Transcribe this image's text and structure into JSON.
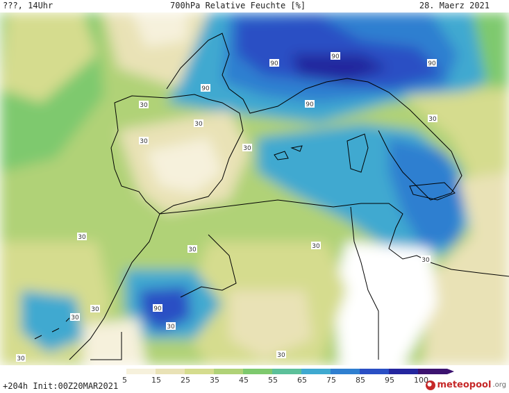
{
  "header": {
    "left": "???, 14Uhr",
    "title": "700hPa Relative Feuchte [%]",
    "date": "28. Maerz 2021"
  },
  "colorbar": {
    "ticks": [
      "5",
      "15",
      "25",
      "35",
      "45",
      "55",
      "65",
      "75",
      "85",
      "95",
      "100"
    ],
    "colors": [
      "#ffffff",
      "#f6f1dc",
      "#e9e2b6",
      "#d5dc8e",
      "#b0d277",
      "#7ec96e",
      "#5cc09a",
      "#3fa9d0",
      "#2f7fd0",
      "#2a4fc4",
      "#24269e",
      "#3c1370"
    ]
  },
  "contour_labels": [
    "90",
    "90",
    "90",
    "90",
    "90",
    "30",
    "30",
    "30",
    "30",
    "30",
    "30",
    "30",
    "30",
    "30",
    "30",
    "30",
    "30",
    "30",
    "30",
    "90"
  ],
  "footer": {
    "run": "+204h  Init:00Z20MAR2021",
    "brand_main": "meteopool",
    "brand_suffix": ".org"
  }
}
